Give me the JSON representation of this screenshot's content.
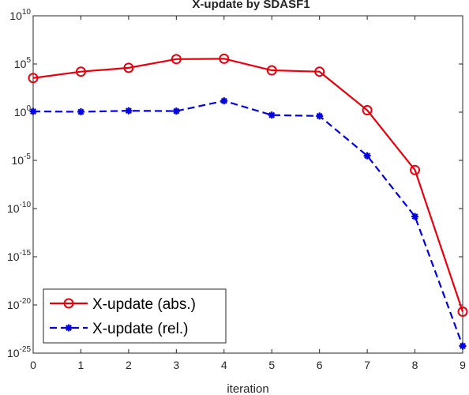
{
  "chart_data": {
    "type": "line",
    "title": "X-update by SDASF1",
    "xlabel": "iteration",
    "ylabel": "",
    "x": [
      0,
      1,
      2,
      3,
      4,
      5,
      6,
      7,
      8,
      9
    ],
    "xlim": [
      0,
      9
    ],
    "ylim": [
      1e-25,
      10000000000.0
    ],
    "yscale": "log",
    "xticks": [
      "0",
      "1",
      "2",
      "3",
      "4",
      "5",
      "6",
      "7",
      "8",
      "9"
    ],
    "yticks": [
      {
        "base": "10",
        "exp": "-25"
      },
      {
        "base": "10",
        "exp": "-20"
      },
      {
        "base": "10",
        "exp": "-15"
      },
      {
        "base": "10",
        "exp": "-10"
      },
      {
        "base": "10",
        "exp": "-5"
      },
      {
        "base": "10",
        "exp": "0"
      },
      {
        "base": "10",
        "exp": "5"
      },
      {
        "base": "10",
        "exp": "10"
      }
    ],
    "grid": false,
    "legend_position": "bottom-left",
    "series": [
      {
        "name": "X-update (abs.)",
        "color": "#e8000b",
        "line_style": "solid",
        "marker": "circle",
        "values": [
          3500.0,
          16000.0,
          40000.0,
          320000.0,
          350000.0,
          22000.0,
          16000.0,
          1.6,
          1e-06,
          2e-21
        ]
      },
      {
        "name": "X-update (rel.)",
        "color": "#0000e0",
        "line_style": "dashed",
        "marker": "asterisk",
        "values": [
          1.2,
          1.1,
          1.4,
          1.3,
          15,
          0.5,
          0.4,
          3e-05,
          1.5e-11,
          5.5e-25
        ]
      }
    ]
  }
}
